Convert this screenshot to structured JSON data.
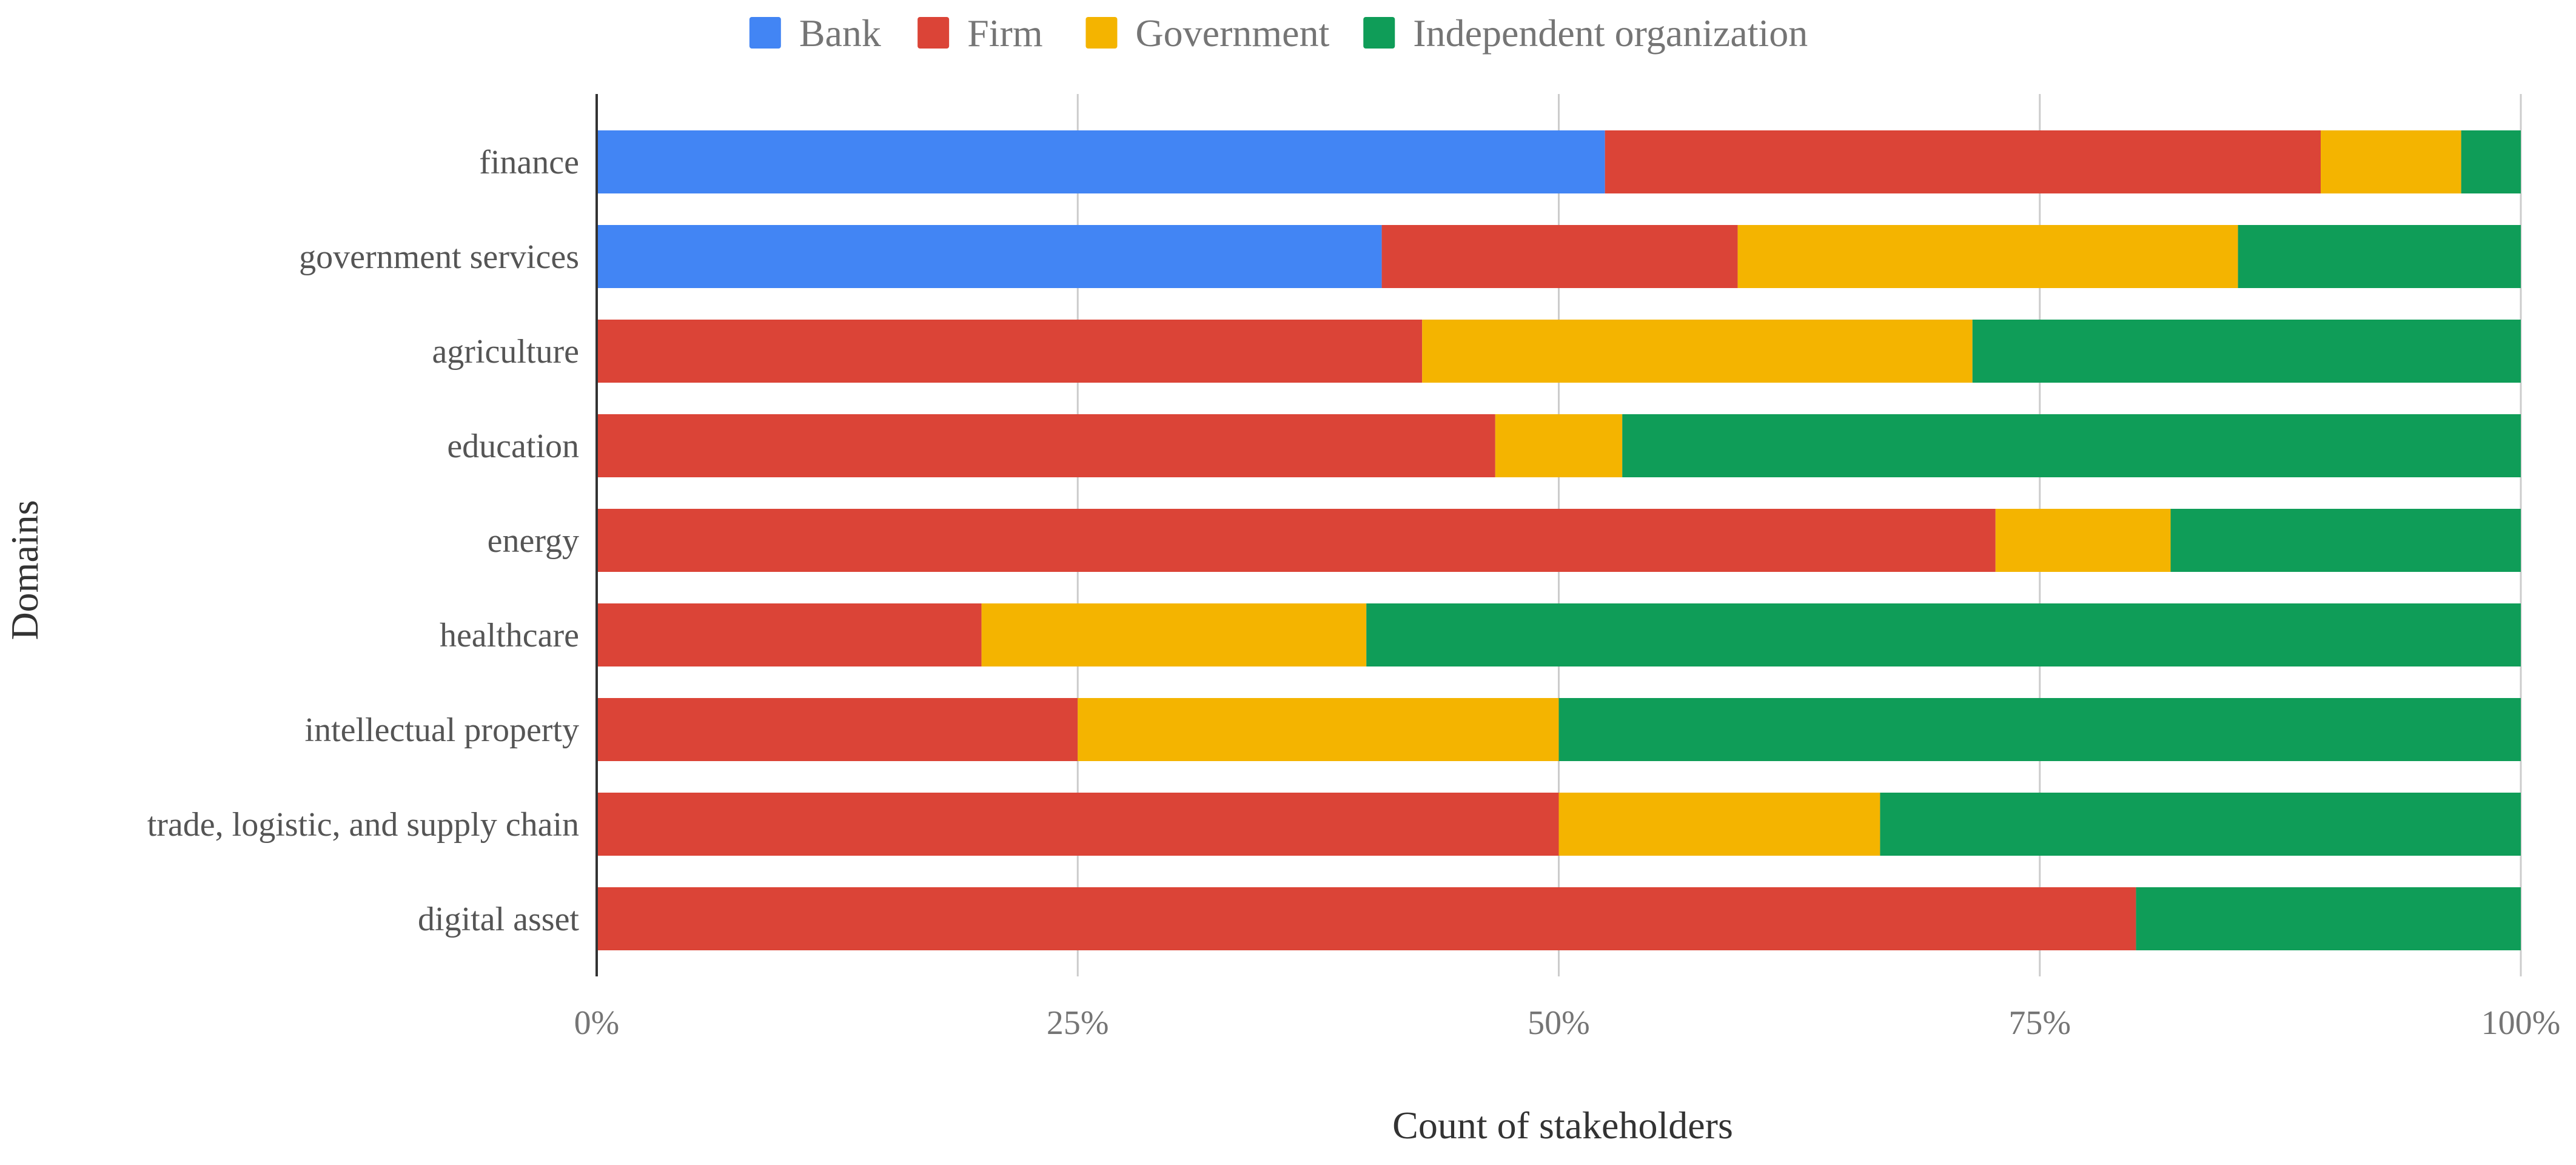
{
  "chart_data": {
    "type": "bar",
    "orientation": "horizontal",
    "stacked": "percent",
    "title": "",
    "xlabel": "Count of stakeholders",
    "ylabel": "Domains",
    "xlim": [
      0,
      100
    ],
    "x_ticks": [
      "0%",
      "25%",
      "50%",
      "75%",
      "100%"
    ],
    "grid": true,
    "legend_position": "top",
    "categories": [
      "finance",
      "government services",
      "agriculture",
      "education",
      "energy",
      "healthcare",
      "intellectual property",
      "trade, logistic, and supply chain",
      "digital asset"
    ],
    "series": [
      {
        "name": "Bank",
        "color": "#4285F4",
        "values": [
          52.4,
          40.8,
          0,
          0,
          0,
          0,
          0,
          0,
          0
        ]
      },
      {
        "name": "Firm",
        "color": "#DB4437",
        "values": [
          37.2,
          18.5,
          42.9,
          46.7,
          72.7,
          20.0,
          25.0,
          50.0,
          80.0
        ]
      },
      {
        "name": "Government",
        "color": "#F4B400",
        "values": [
          7.3,
          26.0,
          28.6,
          6.6,
          9.1,
          20.0,
          25.0,
          16.7,
          0
        ]
      },
      {
        "name": "Independent organization",
        "color": "#0F9D58",
        "values": [
          3.1,
          14.7,
          28.5,
          46.7,
          18.2,
          60.0,
          50.0,
          33.3,
          20.0
        ]
      }
    ]
  }
}
